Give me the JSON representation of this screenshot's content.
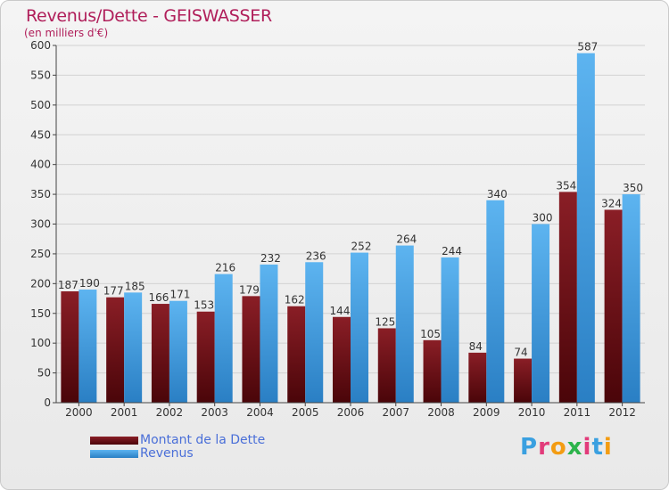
{
  "title": "Revenus/Dette - GEISWASSER",
  "subtitle": "(en milliers d'€)",
  "logo": {
    "text": "Proxiti",
    "colors": [
      "#3aa0e0",
      "#e23b7a",
      "#f39c12",
      "#2bb34a",
      "#e23b7a",
      "#3aa0e0",
      "#f39c12"
    ]
  },
  "legend": [
    {
      "label": "Montant de la Dette",
      "color": "#6b0d12"
    },
    {
      "label": "Revenus",
      "color": "#3a9ee4"
    }
  ],
  "chart_data": {
    "type": "bar",
    "title": "Revenus/Dette - GEISWASSER",
    "subtitle": "(en milliers d'€)",
    "categories": [
      "2000",
      "2001",
      "2002",
      "2003",
      "2004",
      "2005",
      "2006",
      "2007",
      "2008",
      "2009",
      "2010",
      "2011",
      "2012"
    ],
    "series": [
      {
        "name": "Montant de la Dette",
        "color": "#6b0d12",
        "values": [
          187,
          177,
          166,
          153,
          179,
          162,
          144,
          125,
          105,
          84,
          74,
          354,
          324
        ]
      },
      {
        "name": "Revenus",
        "color": "#3a9ee4",
        "values": [
          190,
          185,
          171,
          216,
          232,
          236,
          252,
          264,
          244,
          340,
          300,
          587,
          350
        ]
      }
    ],
    "ylim": [
      0,
      600
    ],
    "yticks": [
      0,
      50,
      100,
      150,
      200,
      250,
      300,
      350,
      400,
      450,
      500,
      550,
      600
    ],
    "grid": true,
    "legend_position": "bottom-left"
  }
}
